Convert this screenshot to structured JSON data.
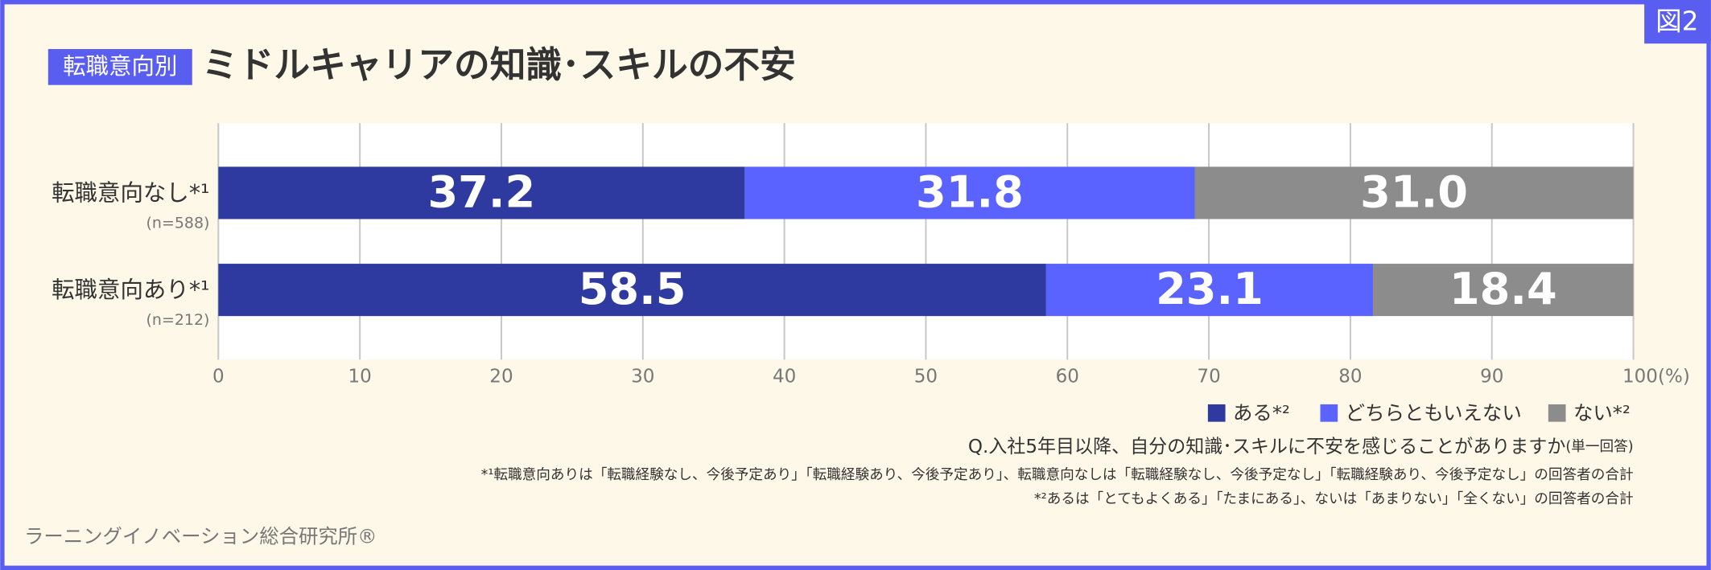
{
  "chart_data": {
    "type": "stacked_barh",
    "badge": "図2",
    "title_tag": "転職意向別",
    "title": "ミドルキャリアの知識･スキルの不安",
    "categories": [
      "転職意向なし*¹",
      "転職意向あり*¹"
    ],
    "sample_sizes": [
      "(n=588)",
      "(n=212)"
    ],
    "series": [
      {
        "name": "ある*²",
        "color": "#2e3aa0",
        "values": [
          37.2,
          58.5
        ],
        "value_labels": [
          "37.2",
          "58.5"
        ]
      },
      {
        "name": "どちらともいえない",
        "color": "#5a63ff",
        "values": [
          31.8,
          23.1
        ],
        "value_labels": [
          "31.8",
          "23.1"
        ]
      },
      {
        "name": "ない*²",
        "color": "#8c8c8c",
        "values": [
          31.0,
          18.4
        ],
        "value_labels": [
          "31.0",
          "18.4"
        ]
      }
    ],
    "xlim": [
      0,
      100
    ],
    "xticks": [
      0,
      10,
      20,
      30,
      40,
      50,
      60,
      70,
      80,
      90,
      {
        "value": 100,
        "label": "100(%)"
      }
    ],
    "grid": true,
    "question": "Q.入社5年目以降、自分の知識･スキルに不安を感じることがありますか",
    "question_note": "(単一回答)",
    "notes": [
      "*¹転職意向ありは「転職経験なし、今後予定あり」「転職経験あり、今後予定あり」、転職意向なしは「転職経験なし、今後予定なし」「転職経験あり、今後予定なし」の回答者の合計",
      "*²あるは「とてもよくある」「たまにある」、ないは「あまりない」「全くない」の回答者の合計"
    ],
    "source": "ラーニングイノベーション総合研究所®"
  }
}
